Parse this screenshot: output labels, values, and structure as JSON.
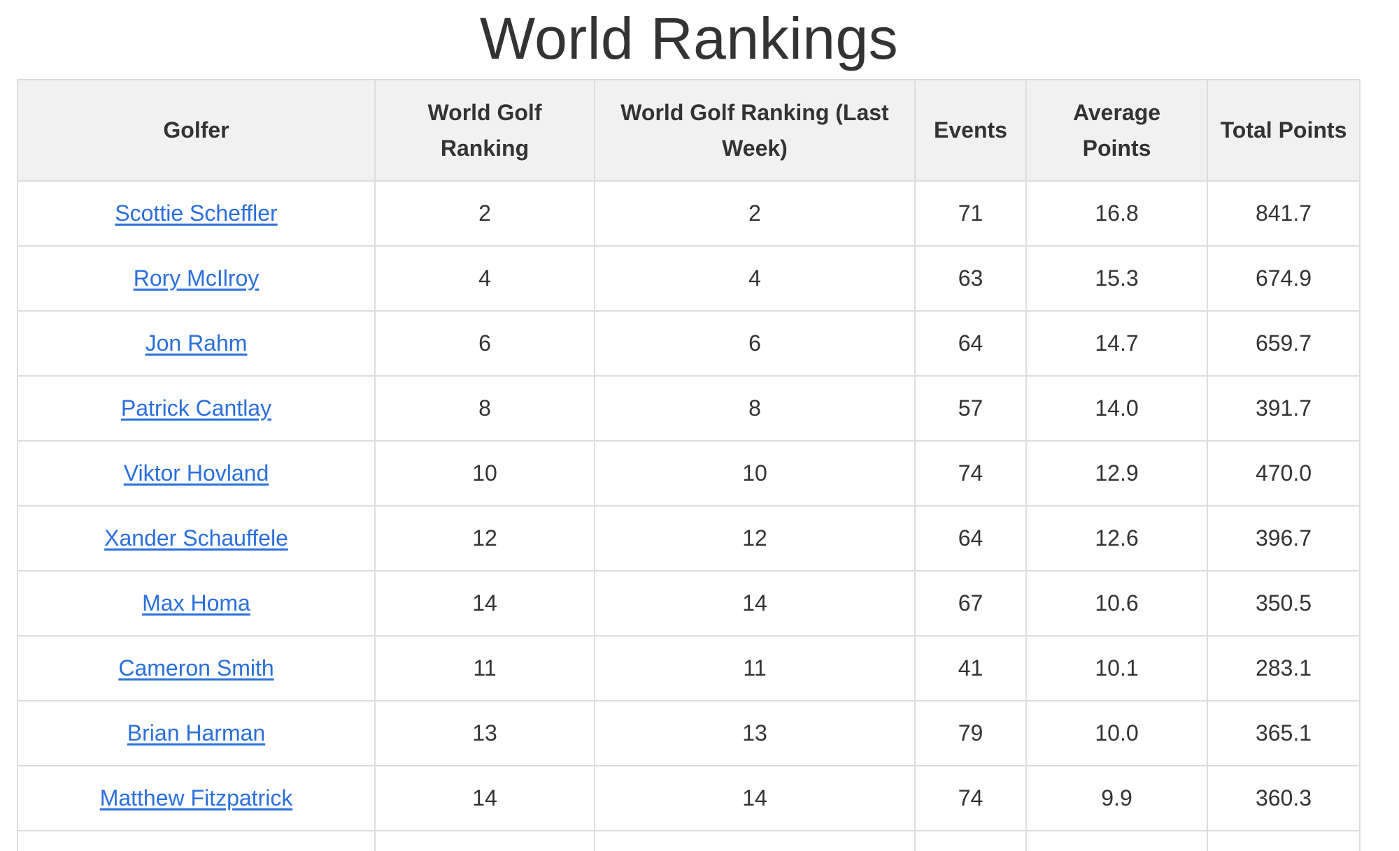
{
  "page": {
    "title": "World Rankings"
  },
  "table": {
    "headers": {
      "golfer": "Golfer",
      "world_golf_ranking": "World Golf Ranking",
      "world_golf_ranking_last_week": "World Golf Ranking (Last Week)",
      "events": "Events",
      "average_points": "Average Points",
      "total_points": "Total Points"
    },
    "rows": [
      {
        "golfer": "Scottie Scheffler",
        "rank": "2",
        "rank_last_week": "2",
        "events": "71",
        "avg_points": "16.8",
        "total_points": "841.7"
      },
      {
        "golfer": "Rory McIlroy",
        "rank": "4",
        "rank_last_week": "4",
        "events": "63",
        "avg_points": "15.3",
        "total_points": "674.9"
      },
      {
        "golfer": "Jon Rahm",
        "rank": "6",
        "rank_last_week": "6",
        "events": "64",
        "avg_points": "14.7",
        "total_points": "659.7"
      },
      {
        "golfer": "Patrick Cantlay",
        "rank": "8",
        "rank_last_week": "8",
        "events": "57",
        "avg_points": "14.0",
        "total_points": "391.7"
      },
      {
        "golfer": "Viktor Hovland",
        "rank": "10",
        "rank_last_week": "10",
        "events": "74",
        "avg_points": "12.9",
        "total_points": "470.0"
      },
      {
        "golfer": "Xander Schauffele",
        "rank": "12",
        "rank_last_week": "12",
        "events": "64",
        "avg_points": "12.6",
        "total_points": "396.7"
      },
      {
        "golfer": "Max Homa",
        "rank": "14",
        "rank_last_week": "14",
        "events": "67",
        "avg_points": "10.6",
        "total_points": "350.5"
      },
      {
        "golfer": "Cameron Smith",
        "rank": "11",
        "rank_last_week": "11",
        "events": "41",
        "avg_points": "10.1",
        "total_points": "283.1"
      },
      {
        "golfer": "Brian Harman",
        "rank": "13",
        "rank_last_week": "13",
        "events": "79",
        "avg_points": "10.0",
        "total_points": "365.1"
      },
      {
        "golfer": "Matthew Fitzpatrick",
        "rank": "14",
        "rank_last_week": "14",
        "events": "74",
        "avg_points": "9.9",
        "total_points": "360.3"
      }
    ]
  },
  "colors": {
    "link": "#2a6fdb",
    "header_bg": "#f1f1f1",
    "border": "#dddddd",
    "text": "#333333"
  }
}
